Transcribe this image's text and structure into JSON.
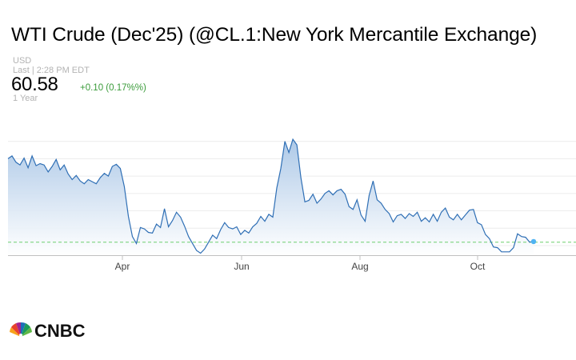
{
  "header": {
    "title": "WTI Crude (Dec'25) (@CL.1:New York Mercantile Exchange)",
    "currency": "USD",
    "last_update": "Last | 2:28 PM EDT",
    "price": "60.58",
    "change": "+0.10 (0.17%%)",
    "period": "1 Year"
  },
  "brand": {
    "name": "CNBC"
  },
  "colors": {
    "line": "#2f6fb5",
    "fill_top": "#a9c6e6",
    "fill_bottom": "#ffffff",
    "positive": "#3a9b3a",
    "reference": "#6fcf6f",
    "marker": "#4fb3f2"
  },
  "chart_data": {
    "type": "area",
    "title": "",
    "xlabel": "",
    "ylabel": "",
    "x_ticks": [
      "Apr",
      "Jun",
      "Aug",
      "Oct"
    ],
    "y_range": [
      58.5,
      77.5
    ],
    "y_grid": [
      60,
      62.5,
      65,
      67.5,
      70,
      72.5,
      75
    ],
    "grid": true,
    "reference_line": 60.48,
    "series": [
      {
        "values": [
          72.5,
          72.9,
          72.0,
          71.6,
          72.6,
          71.2,
          72.9,
          71.5,
          71.8,
          71.6,
          70.6,
          71.4,
          72.4,
          70.9,
          71.6,
          70.3,
          69.5,
          70.1,
          69.3,
          68.9,
          69.5,
          69.2,
          68.9,
          69.8,
          70.4,
          70.0,
          71.4,
          71.7,
          71.1,
          68.5,
          64.2,
          61.3,
          60.3,
          62.6,
          62.4,
          61.9,
          61.8,
          63.1,
          62.6,
          65.3,
          62.7,
          63.6,
          64.8,
          64.1,
          62.8,
          61.3,
          60.3,
          59.3,
          58.9,
          59.5,
          60.5,
          61.5,
          61.0,
          62.3,
          63.3,
          62.6,
          62.4,
          62.7,
          61.6,
          62.2,
          61.8,
          62.7,
          63.2,
          64.2,
          63.5,
          64.5,
          64.1,
          68.3,
          71.1,
          75.0,
          73.4,
          75.3,
          74.5,
          69.8,
          66.3,
          66.5,
          67.4,
          66.1,
          66.7,
          67.5,
          67.9,
          67.3,
          67.9,
          68.1,
          67.4,
          65.6,
          65.2,
          66.6,
          64.4,
          63.5,
          67.2,
          69.3,
          66.6,
          66.1,
          65.2,
          64.6,
          63.4,
          64.3,
          64.5,
          63.9,
          64.6,
          64.2,
          64.8,
          63.5,
          64.0,
          63.4,
          64.5,
          63.5,
          64.8,
          65.4,
          64.1,
          63.7,
          64.5,
          63.7,
          64.4,
          65.1,
          65.2,
          63.3,
          63.0,
          61.6,
          61.0,
          59.8,
          59.7,
          59.1,
          59.1,
          59.1,
          59.7,
          61.7,
          61.3,
          61.2,
          60.5,
          60.58
        ]
      }
    ]
  }
}
